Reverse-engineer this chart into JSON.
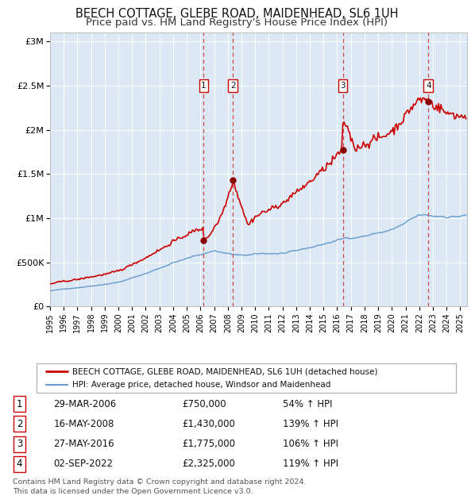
{
  "title": "BEECH COTTAGE, GLEBE ROAD, MAIDENHEAD, SL6 1UH",
  "subtitle": "Price paid vs. HM Land Registry's House Price Index (HPI)",
  "title_fontsize": 10.5,
  "subtitle_fontsize": 9.5,
  "background_color": "#ffffff",
  "plot_bg_color": "#dce9f5",
  "grid_color": "#ffffff",
  "red_line_color": "#cc0000",
  "blue_line_color": "#6699cc",
  "sale_marker_color": "#880000",
  "dashed_line_color": "#cc3333",
  "ylabel_ticks": [
    "£0",
    "£500K",
    "£1M",
    "£1.5M",
    "£2M",
    "£2.5M",
    "£3M"
  ],
  "ylabel_values": [
    0,
    500000,
    1000000,
    1500000,
    2000000,
    2500000,
    3000000
  ],
  "ylim": [
    0,
    3100000
  ],
  "xlim_start": 1995.0,
  "xlim_end": 2025.5,
  "sale_events": [
    {
      "num": 1,
      "year": 2006.24,
      "price": 750000,
      "label": "29-MAR-2006",
      "price_str": "£750,000",
      "pct": "54%",
      "dir": "↑"
    },
    {
      "num": 2,
      "year": 2008.37,
      "price": 1430000,
      "label": "16-MAY-2008",
      "price_str": "£1,430,000",
      "pct": "139%",
      "dir": "↑"
    },
    {
      "num": 3,
      "year": 2016.41,
      "price": 1775000,
      "label": "27-MAY-2016",
      "price_str": "£1,775,000",
      "pct": "106%",
      "dir": "↑"
    },
    {
      "num": 4,
      "year": 2022.67,
      "price": 2325000,
      "label": "02-SEP-2022",
      "price_str": "£2,325,000",
      "pct": "119%",
      "dir": "↑"
    }
  ],
  "legend_red_label": "BEECH COTTAGE, GLEBE ROAD, MAIDENHEAD, SL6 1UH (detached house)",
  "legend_blue_label": "HPI: Average price, detached house, Windsor and Maidenhead",
  "footnote": "Contains HM Land Registry data © Crown copyright and database right 2024.\nThis data is licensed under the Open Government Licence v3.0.",
  "xticks": [
    1995,
    1996,
    1997,
    1998,
    1999,
    2000,
    2001,
    2002,
    2003,
    2004,
    2005,
    2006,
    2007,
    2008,
    2009,
    2010,
    2011,
    2012,
    2013,
    2014,
    2015,
    2016,
    2017,
    2018,
    2019,
    2020,
    2021,
    2022,
    2023,
    2024,
    2025
  ]
}
